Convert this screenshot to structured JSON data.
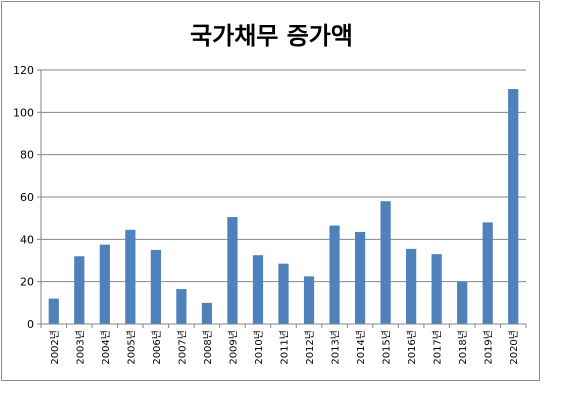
{
  "chart_data": {
    "type": "bar",
    "title": "국가채무 증가액",
    "xlabel": "",
    "ylabel": "",
    "ylim": [
      0,
      120
    ],
    "yticks": [
      "0",
      "20",
      "40",
      "60",
      "80",
      "100",
      "120"
    ],
    "categories": [
      "2002년",
      "2003년",
      "2004년",
      "2005년",
      "2006년",
      "2007년",
      "2008년",
      "2009년",
      "2010년",
      "2011년",
      "2012년",
      "2013년",
      "2014년",
      "2015년",
      "2016년",
      "2017년",
      "2018년",
      "2019년",
      "2020년"
    ],
    "values": [
      12,
      32,
      37.5,
      44.5,
      35,
      16.5,
      10,
      50.5,
      32.5,
      28.5,
      22.5,
      46.5,
      43.5,
      58,
      35.5,
      33,
      20,
      48,
      111
    ],
    "grid": true,
    "bar_color": "#4f81bd",
    "legend": "none"
  }
}
